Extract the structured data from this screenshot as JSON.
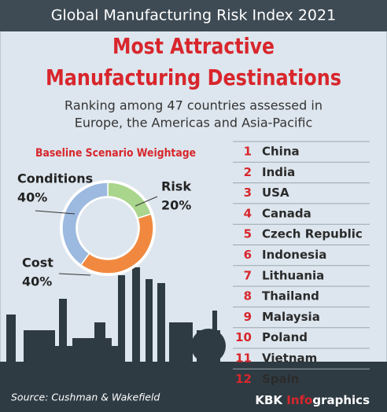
{
  "header": "Global Manufacturing Risk Index 2021",
  "title": [
    "Most Attractive",
    "Manufacturing Destinations"
  ],
  "subtitle": [
    "Ranking among 47 countries assessed in",
    "Europe, the Americas and Asia-Pacific"
  ],
  "chart_data": {
    "type": "donut",
    "title": "Baseline Scenario Weightage",
    "categories": [
      "Risk",
      "Cost",
      "Conditions"
    ],
    "values": [
      20,
      40,
      40
    ],
    "value_labels": [
      "20%",
      "40%",
      "40%"
    ],
    "colors": [
      "#a9d58c",
      "#f0893f",
      "#9cb9df"
    ]
  },
  "ranking": [
    {
      "rank": 1,
      "country": "China"
    },
    {
      "rank": 2,
      "country": "India"
    },
    {
      "rank": 3,
      "country": "USA"
    },
    {
      "rank": 4,
      "country": "Canada"
    },
    {
      "rank": 5,
      "country": "Czech Republic"
    },
    {
      "rank": 6,
      "country": "Indonesia"
    },
    {
      "rank": 7,
      "country": "Lithuania"
    },
    {
      "rank": 8,
      "country": "Thailand"
    },
    {
      "rank": 9,
      "country": "Malaysia"
    },
    {
      "rank": 10,
      "country": "Poland"
    },
    {
      "rank": 11,
      "country": "Vietnam"
    },
    {
      "rank": 12,
      "country": "Spain"
    }
  ],
  "source": "Source: Cushman & Wakefield",
  "brand": {
    "kbk": "KBK ",
    "info": "Info",
    "graphics": "graphics"
  }
}
